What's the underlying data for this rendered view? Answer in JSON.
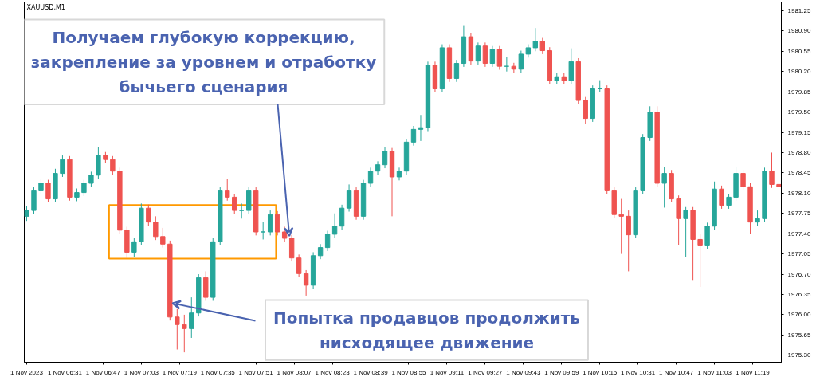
{
  "chart_data": {
    "type": "candlestick",
    "title": "XAUUSD,M1",
    "x": [
      "2023-11-01T06:15",
      "2023-11-01T06:18",
      "2023-11-01T06:21",
      "2023-11-01T06:24",
      "2023-11-01T06:27",
      "2023-11-01T06:30",
      "2023-11-01T06:33",
      "2023-11-01T06:36",
      "2023-11-01T06:39",
      "2023-11-01T06:42",
      "2023-11-01T06:45",
      "2023-11-01T06:48",
      "2023-11-01T06:51",
      "2023-11-01T06:54",
      "2023-11-01T06:57",
      "2023-11-01T07:00",
      "2023-11-01T07:03",
      "2023-11-01T07:06",
      "2023-11-01T07:09",
      "2023-11-01T07:12",
      "2023-11-01T07:15",
      "2023-11-01T07:18",
      "2023-11-01T07:21",
      "2023-11-01T07:24",
      "2023-11-01T07:27",
      "2023-11-01T07:30",
      "2023-11-01T07:33",
      "2023-11-01T07:36",
      "2023-11-01T07:39",
      "2023-11-01T07:42",
      "2023-11-01T07:45",
      "2023-11-01T07:48",
      "2023-11-01T07:51",
      "2023-11-01T07:54",
      "2023-11-01T07:57",
      "2023-11-01T08:00",
      "2023-11-01T08:03",
      "2023-11-01T08:06",
      "2023-11-01T08:09",
      "2023-11-01T08:12",
      "2023-11-01T08:15",
      "2023-11-01T08:18",
      "2023-11-01T08:21",
      "2023-11-01T08:24",
      "2023-11-01T08:27",
      "2023-11-01T08:30",
      "2023-11-01T08:33",
      "2023-11-01T08:36",
      "2023-11-01T08:39",
      "2023-11-01T08:42",
      "2023-11-01T08:45",
      "2023-11-01T08:48",
      "2023-11-01T08:51",
      "2023-11-01T08:54",
      "2023-11-01T08:57",
      "2023-11-01T09:00",
      "2023-11-01T09:03",
      "2023-11-01T09:06",
      "2023-11-01T09:09",
      "2023-11-01T09:12",
      "2023-11-01T09:15",
      "2023-11-01T09:18",
      "2023-11-01T09:21",
      "2023-11-01T09:24",
      "2023-11-01T09:27",
      "2023-11-01T09:30",
      "2023-11-01T09:33",
      "2023-11-01T09:36",
      "2023-11-01T09:39",
      "2023-11-01T09:42",
      "2023-11-01T09:45",
      "2023-11-01T09:48",
      "2023-11-01T09:51",
      "2023-11-01T09:54",
      "2023-11-01T09:57",
      "2023-11-01T10:00",
      "2023-11-01T10:03",
      "2023-11-01T10:06",
      "2023-11-01T10:09",
      "2023-11-01T10:12",
      "2023-11-01T10:15",
      "2023-11-01T10:18",
      "2023-11-01T10:21",
      "2023-11-01T10:24",
      "2023-11-01T10:27",
      "2023-11-01T10:30",
      "2023-11-01T10:33",
      "2023-11-01T10:36",
      "2023-11-01T10:39",
      "2023-11-01T10:42",
      "2023-11-01T10:45",
      "2023-11-01T10:48",
      "2023-11-01T10:51",
      "2023-11-01T10:54",
      "2023-11-01T10:57",
      "2023-11-01T11:00",
      "2023-11-01T11:03",
      "2023-11-01T11:06",
      "2023-11-01T11:09",
      "2023-11-01T11:12",
      "2023-11-01T11:15",
      "2023-11-01T11:18",
      "2023-11-01T11:21",
      "2023-11-01T11:24",
      "2023-11-01T11:27",
      "2023-11-01T11:30"
    ],
    "ohlc": [
      [
        1977.7,
        1977.88,
        1977.62,
        1977.8
      ],
      [
        1977.8,
        1978.2,
        1977.74,
        1978.14
      ],
      [
        1978.14,
        1978.34,
        1978.08,
        1978.27
      ],
      [
        1978.27,
        1978.33,
        1977.94,
        1978.0
      ],
      [
        1978.0,
        1978.52,
        1977.94,
        1978.44
      ],
      [
        1978.44,
        1978.75,
        1978.38,
        1978.68
      ],
      [
        1978.68,
        1978.74,
        1977.97,
        1978.03
      ],
      [
        1978.03,
        1978.18,
        1977.96,
        1978.11
      ],
      [
        1978.11,
        1978.33,
        1978.05,
        1978.27
      ],
      [
        1978.27,
        1978.47,
        1978.21,
        1978.41
      ],
      [
        1978.41,
        1978.9,
        1978.35,
        1978.75
      ],
      [
        1978.75,
        1978.81,
        1978.62,
        1978.68
      ],
      [
        1978.68,
        1978.74,
        1978.42,
        1978.48
      ],
      [
        1978.48,
        1978.54,
        1977.4,
        1977.46
      ],
      [
        1977.46,
        1977.52,
        1976.98,
        1977.08
      ],
      [
        1977.08,
        1977.32,
        1977.0,
        1977.26
      ],
      [
        1977.26,
        1977.92,
        1977.2,
        1977.84
      ],
      [
        1977.84,
        1977.9,
        1977.54,
        1977.6
      ],
      [
        1977.6,
        1977.7,
        1977.29,
        1977.35
      ],
      [
        1977.35,
        1977.5,
        1977.16,
        1977.22
      ],
      [
        1977.22,
        1977.28,
        1975.9,
        1975.96
      ],
      [
        1975.96,
        1976.1,
        1975.4,
        1975.83
      ],
      [
        1975.83,
        1976.0,
        1975.35,
        1975.76
      ],
      [
        1975.76,
        1976.3,
        1975.6,
        1976.03
      ],
      [
        1976.03,
        1976.7,
        1975.97,
        1976.64
      ],
      [
        1976.64,
        1976.75,
        1976.24,
        1976.3
      ],
      [
        1976.3,
        1977.32,
        1976.24,
        1977.26
      ],
      [
        1977.26,
        1978.2,
        1977.2,
        1978.14
      ],
      [
        1978.14,
        1978.35,
        1977.97,
        1978.03
      ],
      [
        1978.03,
        1978.09,
        1977.74,
        1977.8
      ],
      [
        1977.8,
        1977.92,
        1977.66,
        1977.8
      ],
      [
        1977.8,
        1978.2,
        1977.74,
        1978.14
      ],
      [
        1978.14,
        1978.2,
        1977.37,
        1977.43
      ],
      [
        1977.43,
        1977.6,
        1977.3,
        1977.43
      ],
      [
        1977.43,
        1977.8,
        1977.37,
        1977.73
      ],
      [
        1977.73,
        1977.79,
        1977.37,
        1977.43
      ],
      [
        1977.43,
        1977.52,
        1977.26,
        1977.32
      ],
      [
        1977.32,
        1977.38,
        1976.92,
        1976.98
      ],
      [
        1976.98,
        1977.04,
        1976.65,
        1976.71
      ],
      [
        1976.71,
        1976.77,
        1976.33,
        1976.51
      ],
      [
        1976.51,
        1977.08,
        1976.45,
        1977.02
      ],
      [
        1977.02,
        1977.22,
        1976.96,
        1977.16
      ],
      [
        1977.16,
        1977.45,
        1977.1,
        1977.39
      ],
      [
        1977.39,
        1977.75,
        1977.33,
        1977.53
      ],
      [
        1977.53,
        1977.9,
        1977.47,
        1977.84
      ],
      [
        1977.84,
        1978.25,
        1977.78,
        1978.14
      ],
      [
        1978.14,
        1978.2,
        1977.64,
        1977.7
      ],
      [
        1977.7,
        1978.33,
        1977.64,
        1978.27
      ],
      [
        1978.27,
        1978.54,
        1978.21,
        1978.48
      ],
      [
        1978.48,
        1978.65,
        1978.42,
        1978.59
      ],
      [
        1978.59,
        1978.9,
        1978.53,
        1978.82
      ],
      [
        1978.82,
        1978.88,
        1977.7,
        1978.38
      ],
      [
        1978.38,
        1978.54,
        1978.32,
        1978.48
      ],
      [
        1978.48,
        1979.04,
        1978.42,
        1978.98
      ],
      [
        1978.98,
        1979.26,
        1978.92,
        1979.2
      ],
      [
        1979.2,
        1979.45,
        1979.0,
        1979.23
      ],
      [
        1979.23,
        1980.37,
        1979.17,
        1980.31
      ],
      [
        1980.31,
        1980.37,
        1979.84,
        1979.9
      ],
      [
        1979.9,
        1980.67,
        1979.84,
        1980.61
      ],
      [
        1980.61,
        1980.67,
        1980.02,
        1980.08
      ],
      [
        1980.08,
        1980.4,
        1980.02,
        1980.34
      ],
      [
        1980.34,
        1981.0,
        1980.28,
        1980.8
      ],
      [
        1980.8,
        1980.86,
        1980.32,
        1980.38
      ],
      [
        1980.38,
        1980.7,
        1980.32,
        1980.64
      ],
      [
        1980.64,
        1980.7,
        1980.28,
        1980.34
      ],
      [
        1980.34,
        1980.64,
        1980.28,
        1980.58
      ],
      [
        1980.58,
        1980.64,
        1980.23,
        1980.29
      ],
      [
        1980.29,
        1980.45,
        1980.2,
        1980.29
      ],
      [
        1980.29,
        1980.35,
        1980.18,
        1980.24
      ],
      [
        1980.24,
        1980.56,
        1980.18,
        1980.5
      ],
      [
        1980.5,
        1980.67,
        1980.44,
        1980.61
      ],
      [
        1980.61,
        1980.95,
        1980.55,
        1980.72
      ],
      [
        1980.72,
        1980.78,
        1980.5,
        1980.56
      ],
      [
        1980.56,
        1980.62,
        1979.98,
        1980.04
      ],
      [
        1980.04,
        1980.17,
        1979.98,
        1980.11
      ],
      [
        1980.11,
        1980.17,
        1979.98,
        1980.04
      ],
      [
        1980.04,
        1980.6,
        1979.98,
        1980.37
      ],
      [
        1980.37,
        1980.43,
        1979.64,
        1979.7
      ],
      [
        1979.7,
        1979.76,
        1979.3,
        1979.39
      ],
      [
        1979.39,
        1979.96,
        1979.33,
        1979.9
      ],
      [
        1979.9,
        1980.05,
        1979.84,
        1979.9
      ],
      [
        1979.9,
        1979.96,
        1978.08,
        1978.14
      ],
      [
        1978.14,
        1978.2,
        1977.67,
        1977.73
      ],
      [
        1977.73,
        1978.0,
        1977.05,
        1977.7
      ],
      [
        1977.7,
        1977.8,
        1976.75,
        1977.38
      ],
      [
        1977.38,
        1978.2,
        1977.32,
        1978.14
      ],
      [
        1978.14,
        1979.12,
        1978.08,
        1979.06
      ],
      [
        1979.06,
        1979.6,
        1979.0,
        1979.5
      ],
      [
        1979.5,
        1979.6,
        1978.21,
        1978.27
      ],
      [
        1978.27,
        1978.55,
        1977.85,
        1978.44
      ],
      [
        1978.44,
        1978.5,
        1977.94,
        1978.0
      ],
      [
        1978.0,
        1978.06,
        1977.2,
        1977.66
      ],
      [
        1977.66,
        1977.86,
        1977.0,
        1977.8
      ],
      [
        1977.8,
        1977.86,
        1976.6,
        1977.3
      ],
      [
        1977.3,
        1977.4,
        1976.48,
        1977.19
      ],
      [
        1977.19,
        1977.59,
        1977.13,
        1977.53
      ],
      [
        1977.53,
        1978.3,
        1977.47,
        1978.17
      ],
      [
        1978.17,
        1978.23,
        1977.83,
        1977.89
      ],
      [
        1977.89,
        1978.09,
        1977.83,
        1978.03
      ],
      [
        1978.03,
        1978.55,
        1977.97,
        1978.44
      ],
      [
        1978.44,
        1978.5,
        1978.15,
        1978.21
      ],
      [
        1978.21,
        1978.27,
        1977.4,
        1977.6
      ],
      [
        1977.6,
        1977.8,
        1977.54,
        1977.66
      ],
      [
        1977.66,
        1978.54,
        1977.6,
        1978.48
      ],
      [
        1978.48,
        1978.8,
        1978.19,
        1978.25
      ],
      [
        1978.25,
        1978.31,
        1978.05,
        1978.21
      ]
    ],
    "colors": [
      "#26a69a",
      "#26a69a",
      "#26a69a",
      "#ef5350",
      "#26a69a",
      "#26a69a",
      "#ef5350",
      "#26a69a",
      "#26a69a",
      "#26a69a",
      "#26a69a",
      "#ef5350",
      "#ef5350",
      "#ef5350",
      "#ef5350",
      "#26a69a",
      "#26a69a",
      "#ef5350",
      "#ef5350",
      "#ef5350",
      "#ef5350",
      "#ef5350",
      "#ef5350",
      "#26a69a",
      "#26a69a",
      "#ef5350",
      "#26a69a",
      "#26a69a",
      "#ef5350",
      "#ef5350",
      "#26a69a",
      "#26a69a",
      "#ef5350",
      "#26a69a",
      "#26a69a",
      "#ef5350",
      "#ef5350",
      "#ef5350",
      "#ef5350",
      "#ef5350",
      "#26a69a",
      "#26a69a",
      "#26a69a",
      "#26a69a",
      "#26a69a",
      "#26a69a",
      "#ef5350",
      "#26a69a",
      "#26a69a",
      "#26a69a",
      "#26a69a",
      "#ef5350",
      "#26a69a",
      "#26a69a",
      "#26a69a",
      "#26a69a",
      "#26a69a",
      "#ef5350",
      "#26a69a",
      "#ef5350",
      "#26a69a",
      "#26a69a",
      "#ef5350",
      "#26a69a",
      "#ef5350",
      "#26a69a",
      "#ef5350",
      "#26a69a",
      "#ef5350",
      "#26a69a",
      "#26a69a",
      "#26a69a",
      "#ef5350",
      "#ef5350",
      "#26a69a",
      "#ef5350",
      "#26a69a",
      "#ef5350",
      "#ef5350",
      "#26a69a",
      "#26a69a",
      "#ef5350",
      "#ef5350",
      "#ef5350",
      "#ef5350",
      "#26a69a",
      "#26a69a",
      "#26a69a",
      "#ef5350",
      "#26a69a",
      "#ef5350",
      "#ef5350",
      "#26a69a",
      "#ef5350",
      "#ef5350",
      "#26a69a",
      "#26a69a",
      "#ef5350",
      "#26a69a",
      "#26a69a",
      "#ef5350",
      "#ef5350",
      "#26a69a",
      "#26a69a",
      "#ef5350",
      "#ef5350"
    ],
    "xlim": [
      "2023-11-01T06:14",
      "2023-11-01T11:31"
    ],
    "xticks": [
      {
        "value": "2023-11-01T06:15",
        "label": "1 Nov 2023"
      },
      {
        "value": "2023-11-01T06:31",
        "label": "1 Nov 06:31"
      },
      {
        "value": "2023-11-01T06:47",
        "label": "1 Nov 06:47"
      },
      {
        "value": "2023-11-01T07:03",
        "label": "1 Nov 07:03"
      },
      {
        "value": "2023-11-01T07:19",
        "label": "1 Nov 07:19"
      },
      {
        "value": "2023-11-01T07:35",
        "label": "1 Nov 07:35"
      },
      {
        "value": "2023-11-01T07:51",
        "label": "1 Nov 07:51"
      },
      {
        "value": "2023-11-01T08:07",
        "label": "1 Nov 08:07"
      },
      {
        "value": "2023-11-01T08:23",
        "label": "1 Nov 08:23"
      },
      {
        "value": "2023-11-01T08:39",
        "label": "1 Nov 08:39"
      },
      {
        "value": "2023-11-01T08:55",
        "label": "1 Nov 08:55"
      },
      {
        "value": "2023-11-01T09:11",
        "label": "1 Nov 09:11"
      },
      {
        "value": "2023-11-01T09:27",
        "label": "1 Nov 09:27"
      },
      {
        "value": "2023-11-01T09:43",
        "label": "1 Nov 09:43"
      },
      {
        "value": "2023-11-01T09:59",
        "label": "1 Nov 09:59"
      },
      {
        "value": "2023-11-01T10:15",
        "label": "1 Nov 10:15"
      },
      {
        "value": "2023-11-01T10:31",
        "label": "1 Nov 10:31"
      },
      {
        "value": "2023-11-01T10:47",
        "label": "1 Nov 10:47"
      },
      {
        "value": "2023-11-01T11:03",
        "label": "1 Nov 11:03"
      },
      {
        "value": "2023-11-01T11:19",
        "label": "1 Nov 11:19"
      }
    ],
    "ylim": [
      1975.18,
      1981.4
    ],
    "yticks": [
      {
        "value": 1975.3,
        "label": "1975.30"
      },
      {
        "value": 1975.65,
        "label": "1975.65"
      },
      {
        "value": 1976.0,
        "label": "1976.00"
      },
      {
        "value": 1976.35,
        "label": "1976.35"
      },
      {
        "value": 1976.7,
        "label": "1976.70"
      },
      {
        "value": 1977.05,
        "label": "1977.05"
      },
      {
        "value": 1977.4,
        "label": "1977.40"
      },
      {
        "value": 1977.75,
        "label": "1977.75"
      },
      {
        "value": 1978.1,
        "label": "1978.10"
      },
      {
        "value": 1978.45,
        "label": "1978.45"
      },
      {
        "value": 1978.8,
        "label": "1978.80"
      },
      {
        "value": 1979.15,
        "label": "1979.15"
      },
      {
        "value": 1979.5,
        "label": "1979.50"
      },
      {
        "value": 1979.85,
        "label": "1979.85"
      },
      {
        "value": 1980.2,
        "label": "1980.20"
      },
      {
        "value": 1980.55,
        "label": "1980.55"
      },
      {
        "value": 1980.9,
        "label": "1980.90"
      },
      {
        "value": 1981.25,
        "label": "1981.25"
      }
    ],
    "grid": false,
    "annotations": [
      {
        "text": "Получаем глубокую коррекцию,\nзакрепление за уровнем и отработку\nбычьего сценария",
        "x": "2023-11-01T08:05",
        "y": 1977.36
      },
      {
        "text": "Попытка продавцов продолжить\nнисходящее движение",
        "x": "2023-11-01T07:16",
        "y": 1976.2
      }
    ]
  }
}
